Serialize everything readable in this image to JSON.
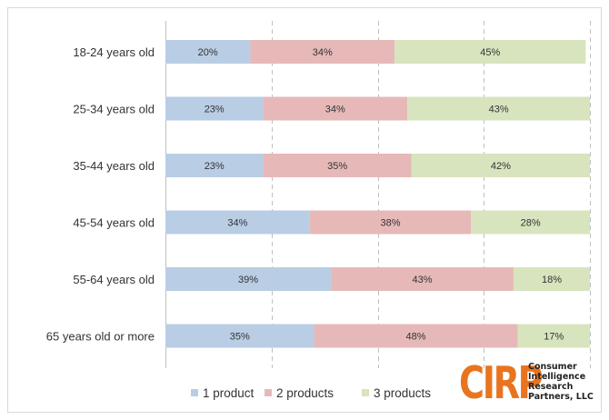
{
  "chart_data": {
    "type": "bar",
    "orientation": "horizontal",
    "stacked": true,
    "percent_stacked": true,
    "categories": [
      "18-24 years old",
      "25-34 years old",
      "35-44 years old",
      "45-54 years old",
      "55-64 years old",
      "65 years old or more"
    ],
    "series": [
      {
        "name": "1 product",
        "color": "#b9cde5",
        "values": [
          20,
          23,
          23,
          34,
          39,
          35
        ],
        "labels": [
          "20%",
          "23%",
          "23%",
          "34%",
          "39%",
          "35%"
        ]
      },
      {
        "name": "2 products",
        "color": "#e6b9b8",
        "values": [
          34,
          34,
          35,
          38,
          43,
          48
        ],
        "labels": [
          "34%",
          "34%",
          "35%",
          "38%",
          "43%",
          "48%"
        ]
      },
      {
        "name": "3 products",
        "color": "#d7e4bd",
        "values": [
          45,
          43,
          42,
          28,
          18,
          17
        ],
        "labels": [
          "45%",
          "43%",
          "42%",
          "28%",
          "18%",
          "17%"
        ]
      }
    ],
    "xlim": [
      0,
      100
    ],
    "grid": true,
    "legend": "bottom"
  },
  "logo": {
    "mark": "CIRP",
    "lines": [
      "Consumer",
      "Intelligence",
      "Research",
      "Partners, LLC"
    ]
  }
}
